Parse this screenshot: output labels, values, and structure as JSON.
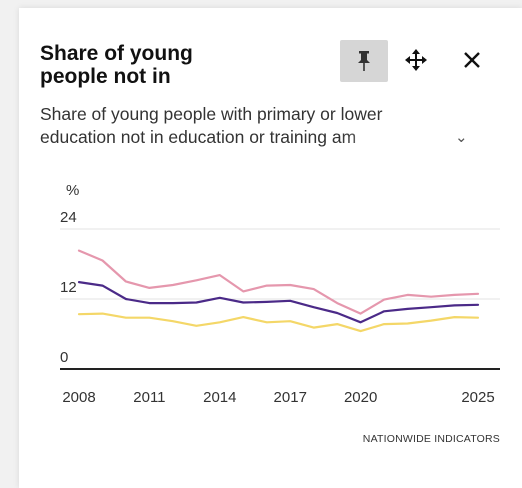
{
  "panel": {
    "title_line1": "Share of young",
    "title_line2": "people not in",
    "subtitle_line1": "Share of young people with primary or lower",
    "subtitle_line2": "education not in education or training am",
    "source": "NATIONWIDE INDICATORS"
  },
  "controls": {
    "pin": "pin-icon",
    "move": "move-icon",
    "close": "close-icon"
  },
  "chart_data": {
    "type": "line",
    "ylabel": "%",
    "ylim": [
      0,
      24
    ],
    "yticks": [
      0,
      12,
      24
    ],
    "xticks": [
      2008,
      2011,
      2014,
      2017,
      2020,
      2025
    ],
    "x": [
      2008,
      2009,
      2010,
      2011,
      2012,
      2013,
      2014,
      2015,
      2016,
      2017,
      2018,
      2019,
      2020,
      2021,
      2022,
      2023,
      2024,
      2025
    ],
    "series": [
      {
        "color": "#e597ad",
        "values": [
          20.3,
          18.6,
          15.0,
          13.9,
          14.4,
          15.2,
          16.1,
          13.3,
          14.3,
          14.4,
          13.7,
          11.3,
          9.5,
          11.9,
          12.7,
          12.4,
          12.7,
          12.9
        ]
      },
      {
        "color": "#4b2a88",
        "values": [
          14.9,
          14.3,
          12.0,
          11.3,
          11.3,
          11.4,
          12.2,
          11.4,
          11.5,
          11.7,
          10.6,
          9.6,
          8.0,
          9.9,
          10.3,
          10.6,
          10.9,
          11.0
        ]
      },
      {
        "color": "#f4d768",
        "values": [
          9.4,
          9.5,
          8.8,
          8.8,
          8.2,
          7.4,
          8.0,
          8.9,
          8.0,
          8.2,
          7.1,
          7.7,
          6.5,
          7.7,
          7.8,
          8.3,
          8.9,
          8.8
        ]
      }
    ]
  }
}
